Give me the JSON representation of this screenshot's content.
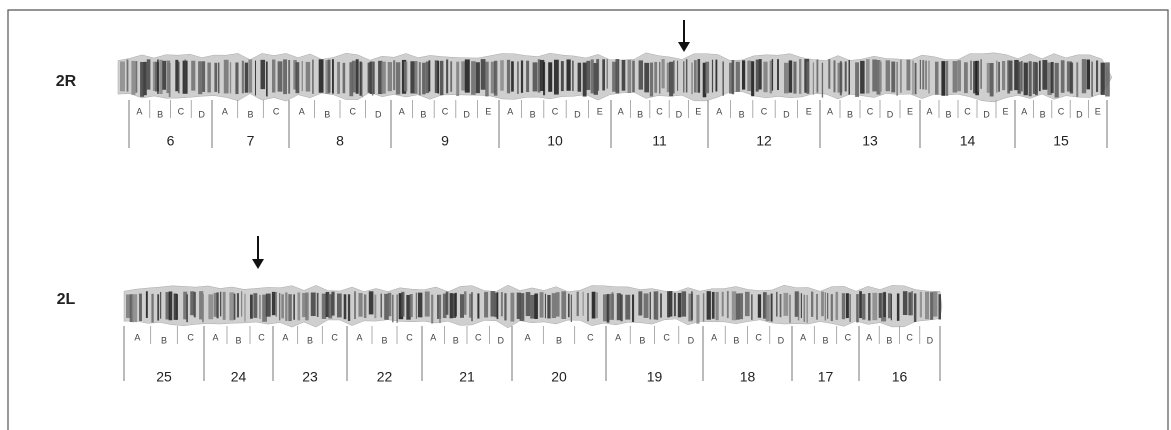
{
  "arms": [
    {
      "label": "2R",
      "sections": [
        {
          "number": 6,
          "subdivisions": [
            "A",
            "B",
            "C",
            "D"
          ]
        },
        {
          "number": 7,
          "subdivisions": [
            "A",
            "B",
            "C"
          ]
        },
        {
          "number": 8,
          "subdivisions": [
            "A",
            "B",
            "C",
            "D"
          ]
        },
        {
          "number": 9,
          "subdivisions": [
            "A",
            "B",
            "C",
            "D",
            "E"
          ]
        },
        {
          "number": 10,
          "subdivisions": [
            "A",
            "B",
            "C",
            "D",
            "E"
          ]
        },
        {
          "number": 11,
          "subdivisions": [
            "A",
            "B",
            "C",
            "D",
            "E"
          ]
        },
        {
          "number": 12,
          "subdivisions": [
            "A",
            "B",
            "C",
            "D",
            "E"
          ]
        },
        {
          "number": 13,
          "subdivisions": [
            "A",
            "B",
            "C",
            "D",
            "E"
          ]
        },
        {
          "number": 14,
          "subdivisions": [
            "A",
            "B",
            "C",
            "D",
            "E"
          ]
        },
        {
          "number": 15,
          "subdivisions": [
            "A",
            "B",
            "C",
            "D",
            "E"
          ]
        }
      ]
    },
    {
      "label": "2L",
      "sections": [
        {
          "number": 25,
          "subdivisions": [
            "A",
            "B",
            "C"
          ]
        },
        {
          "number": 24,
          "subdivisions": [
            "A",
            "B",
            "C"
          ]
        },
        {
          "number": 23,
          "subdivisions": [
            "A",
            "B",
            "C"
          ]
        },
        {
          "number": 22,
          "subdivisions": [
            "A",
            "B",
            "C"
          ]
        },
        {
          "number": 21,
          "subdivisions": [
            "A",
            "B",
            "C",
            "D"
          ]
        },
        {
          "number": 20,
          "subdivisions": [
            "A",
            "B",
            "C"
          ]
        },
        {
          "number": 19,
          "subdivisions": [
            "A",
            "B",
            "C",
            "D"
          ]
        },
        {
          "number": 18,
          "subdivisions": [
            "A",
            "B",
            "C",
            "D"
          ]
        },
        {
          "number": 17,
          "subdivisions": [
            "A",
            "B",
            "C"
          ]
        },
        {
          "number": 16,
          "subdivisions": [
            "A",
            "B",
            "C",
            "D"
          ]
        }
      ]
    }
  ]
}
